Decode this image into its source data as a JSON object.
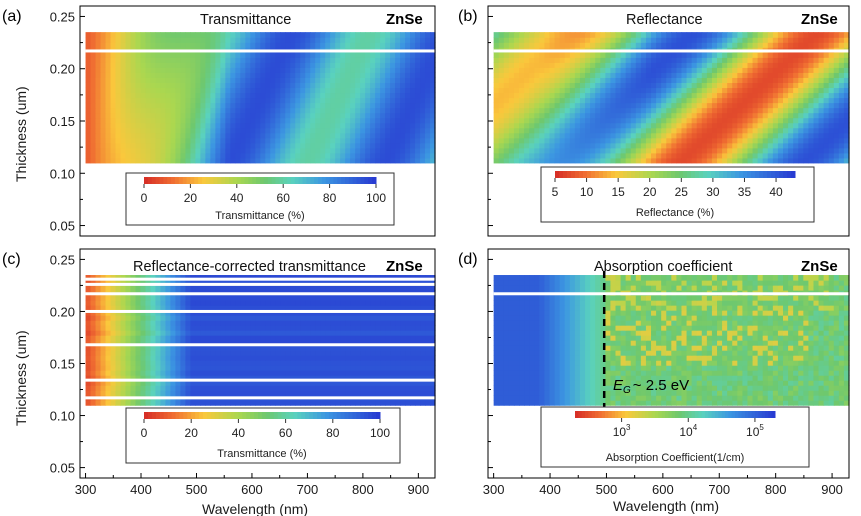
{
  "chart_data": [
    {
      "panel": "(a)",
      "type": "heatmap",
      "title": "Transmittance",
      "material": "ZnSe",
      "ylabel": "Thickness (um)",
      "xlabel": "",
      "ylim": [
        0.04,
        0.26
      ],
      "xlim": [
        290,
        930
      ],
      "yticks": [
        "0.25",
        "0.20",
        "0.15",
        "0.10",
        "0.05"
      ],
      "xticks": [],
      "data_range": {
        "thickness": [
          0.11,
          0.235
        ],
        "wavelength": [
          300,
          930
        ]
      },
      "gap_row": 0.217,
      "colorbar": {
        "label": "Transmittance (%)",
        "ticks": [
          "0",
          "20",
          "40",
          "60",
          "80",
          "100"
        ],
        "range": [
          0,
          100
        ],
        "scale": "linear"
      }
    },
    {
      "panel": "(b)",
      "type": "heatmap",
      "title": "Reflectance",
      "material": "ZnSe",
      "ylabel": "",
      "xlabel": "",
      "ylim": [
        0.04,
        0.26
      ],
      "xlim": [
        290,
        930
      ],
      "yticks": [],
      "xticks": [],
      "data_range": {
        "thickness": [
          0.11,
          0.235
        ],
        "wavelength": [
          300,
          930
        ]
      },
      "gap_row": 0.217,
      "colorbar": {
        "label": "Reflectance (%)",
        "ticks": [
          "5",
          "10",
          "15",
          "20",
          "25",
          "30",
          "35",
          "40"
        ],
        "range": [
          5,
          43
        ],
        "scale": "linear"
      }
    },
    {
      "panel": "(c)",
      "type": "heatmap",
      "title": "Reflectance-corrected transmittance",
      "material": "ZnSe",
      "ylabel": "Thickness (um)",
      "xlabel": "Wavelength (nm)",
      "ylim": [
        0.04,
        0.26
      ],
      "xlim": [
        290,
        930
      ],
      "yticks": [
        "0.25",
        "0.20",
        "0.15",
        "0.10",
        "0.05"
      ],
      "xticks": [
        "300",
        "400",
        "500",
        "600",
        "700",
        "800",
        "900"
      ],
      "data_range": {
        "thickness": [
          0.11,
          0.235
        ],
        "wavelength": [
          300,
          930
        ]
      },
      "gap_rows": [
        0.117,
        0.134,
        0.168,
        0.2,
        0.217,
        0.226,
        0.231
      ],
      "colorbar": {
        "label": "Transmittance (%)",
        "ticks": [
          "0",
          "20",
          "40",
          "60",
          "80",
          "100"
        ],
        "range": [
          0,
          100
        ],
        "scale": "linear"
      }
    },
    {
      "panel": "(d)",
      "type": "heatmap",
      "title": "Absorption coefficient",
      "material": "ZnSe",
      "ylabel": "",
      "xlabel": "Wavelength (nm)",
      "ylim": [
        0.04,
        0.26
      ],
      "xlim": [
        290,
        930
      ],
      "yticks": [],
      "xticks": [
        "300",
        "400",
        "500",
        "600",
        "700",
        "800",
        "900"
      ],
      "data_range": {
        "thickness": [
          0.11,
          0.235
        ],
        "wavelength": [
          300,
          930
        ]
      },
      "gap_row": 0.217,
      "annotation": {
        "line_wavelength": 496,
        "text": "~ 2.5 eV",
        "symbol": "E",
        "subscript": "G"
      },
      "colorbar": {
        "label": "Absorption Coefficient(1/cm)",
        "ticks": [
          "10",
          "10",
          "10"
        ],
        "exponents": [
          "3",
          "4",
          "5"
        ],
        "range": [
          200,
          200000
        ],
        "scale": "log"
      }
    }
  ],
  "colors": {
    "frame": "#000000",
    "gap": "#ffffff",
    "dashed_line": "#000000"
  }
}
